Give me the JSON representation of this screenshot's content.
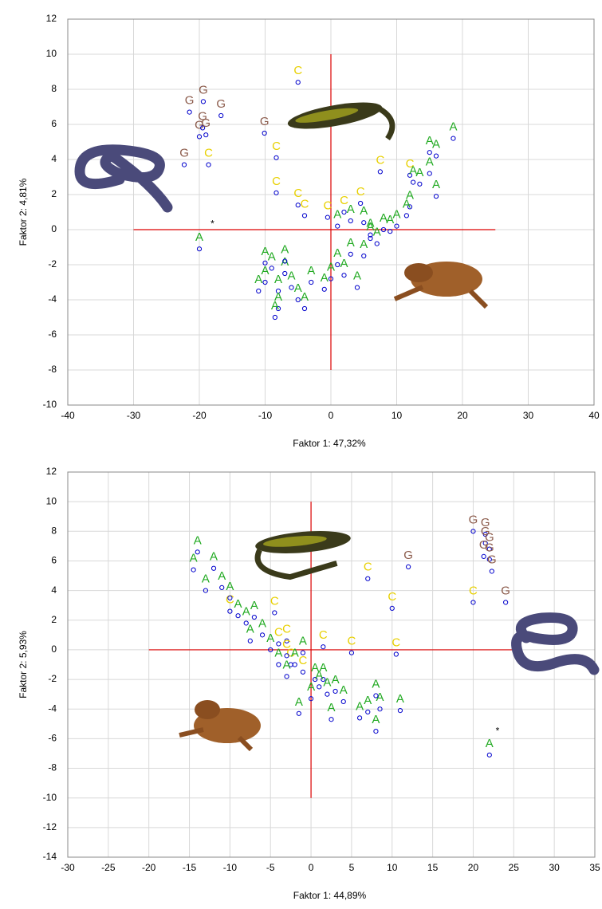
{
  "chart_data": [
    {
      "type": "scatter",
      "xlabel": "Faktor 1: 47,32%",
      "ylabel": "Faktor 2:  4,81%",
      "xlim": [
        -40,
        40
      ],
      "ylim": [
        -10,
        12
      ],
      "xticks": [
        -40,
        -30,
        -20,
        -10,
        0,
        10,
        20,
        30,
        40
      ],
      "yticks": [
        -10,
        -8,
        -6,
        -4,
        -2,
        0,
        2,
        4,
        6,
        8,
        10,
        12
      ],
      "grid": true,
      "marker_color": "#0000cc",
      "crosshair": {
        "x": 0,
        "y": 0,
        "x_span": [
          -30,
          25
        ],
        "y_span": [
          -8,
          10
        ],
        "color": "#dd0000"
      },
      "annotations": [
        {
          "text": "*",
          "x": -18,
          "y": 0.3
        }
      ],
      "series": [
        {
          "name": "G",
          "color": "#8b5a4a",
          "x": [
            -21.5,
            -19.4,
            -16.7,
            -20,
            -19.5,
            -19,
            -22.3,
            -10.1
          ],
          "y": [
            6.7,
            7.3,
            6.5,
            5.3,
            5.8,
            5.4,
            3.7,
            5.5
          ]
        },
        {
          "name": "C",
          "color": "#e8d000",
          "x": [
            -5,
            -18.6,
            -8.3,
            -8.3,
            -5,
            -4,
            7.5,
            12,
            2,
            4.5,
            -0.5
          ],
          "y": [
            8.4,
            3.7,
            4.1,
            2.1,
            1.4,
            0.8,
            3.3,
            3.1,
            1.0,
            1.5,
            0.7
          ]
        },
        {
          "name": "A",
          "color": "#22aa22",
          "x": [
            15,
            16,
            18.6,
            15,
            12.5,
            13.5,
            16,
            12,
            11.5,
            10,
            8,
            6,
            -20,
            -11,
            -10,
            -9,
            -8,
            -7,
            -6,
            -5,
            -4,
            -3,
            -8,
            -8.5,
            -7,
            -10,
            0,
            1,
            2,
            3,
            4,
            5,
            6,
            3,
            5,
            7,
            9,
            1,
            -1
          ],
          "y": [
            4.4,
            4.2,
            5.2,
            3.2,
            2.7,
            2.6,
            1.9,
            1.3,
            0.8,
            0.2,
            0.0,
            -0.3,
            -1.1,
            -3.5,
            -3.0,
            -2.2,
            -3.5,
            -2.5,
            -3.3,
            -4.0,
            -4.5,
            -3.0,
            -4.5,
            -5.0,
            -1.8,
            -1.9,
            -2.8,
            -2.0,
            -2.6,
            -1.4,
            -3.3,
            -1.5,
            -0.5,
            0.5,
            0.4,
            -0.8,
            -0.1,
            0.2,
            -3.4
          ]
        }
      ]
    },
    {
      "type": "scatter",
      "xlabel": "Faktor 1: 44,89%",
      "ylabel": "Faktor 2:  5,93%",
      "xlim": [
        -30,
        35
      ],
      "ylim": [
        -14,
        12
      ],
      "xticks": [
        -30,
        -25,
        -20,
        -15,
        -10,
        -5,
        0,
        5,
        10,
        15,
        20,
        25,
        30,
        35
      ],
      "yticks": [
        -14,
        -12,
        -10,
        -8,
        -6,
        -4,
        -2,
        0,
        2,
        4,
        6,
        8,
        10,
        12
      ],
      "grid": true,
      "marker_color": "#0000cc",
      "crosshair": {
        "x": 0,
        "y": 0,
        "x_span": [
          -20,
          25
        ],
        "y_span": [
          -10,
          10
        ],
        "color": "#dd0000"
      },
      "annotations": [
        {
          "text": "*",
          "x": 23,
          "y": -5.5
        }
      ],
      "series": [
        {
          "name": "G",
          "color": "#8b5a4a",
          "x": [
            20,
            21.5,
            21.5,
            22,
            22,
            21.3,
            22.3,
            24,
            12
          ],
          "y": [
            8,
            7.8,
            7.2,
            6.8,
            6.1,
            6.3,
            5.3,
            3.2,
            5.6
          ]
        },
        {
          "name": "C",
          "color": "#e8d000",
          "x": [
            7,
            20,
            10,
            10.5,
            5,
            1.5,
            -4.5,
            -4,
            -3,
            -2.5,
            -1,
            -10,
            -3
          ],
          "y": [
            4.8,
            3.2,
            2.8,
            -0.3,
            -0.2,
            0.2,
            2.5,
            0.4,
            0.6,
            -1.0,
            -1.5,
            2.6,
            -0.4
          ]
        },
        {
          "name": "A",
          "color": "#22aa22",
          "x": [
            -14,
            -14.5,
            -12,
            -11,
            -13,
            -10,
            -9,
            -8,
            -7.5,
            -7,
            -6,
            -5,
            -4,
            -3,
            -2,
            -1,
            0,
            0.5,
            1.5,
            2,
            3,
            2.5,
            4,
            6,
            7,
            8,
            8.5,
            8,
            11,
            22,
            -1.5,
            1
          ],
          "y": [
            6.6,
            5.4,
            5.5,
            4.2,
            4.0,
            3.5,
            2.3,
            1.8,
            0.6,
            2.2,
            1.0,
            0.0,
            -1.0,
            -1.8,
            -1.0,
            -0.2,
            -3.3,
            -2.0,
            -2.0,
            -3.0,
            -2.8,
            -4.7,
            -3.5,
            -4.6,
            -4.2,
            -5.5,
            -4.0,
            -3.1,
            -4.1,
            -7.1,
            -4.3,
            -2.5
          ]
        }
      ]
    }
  ]
}
